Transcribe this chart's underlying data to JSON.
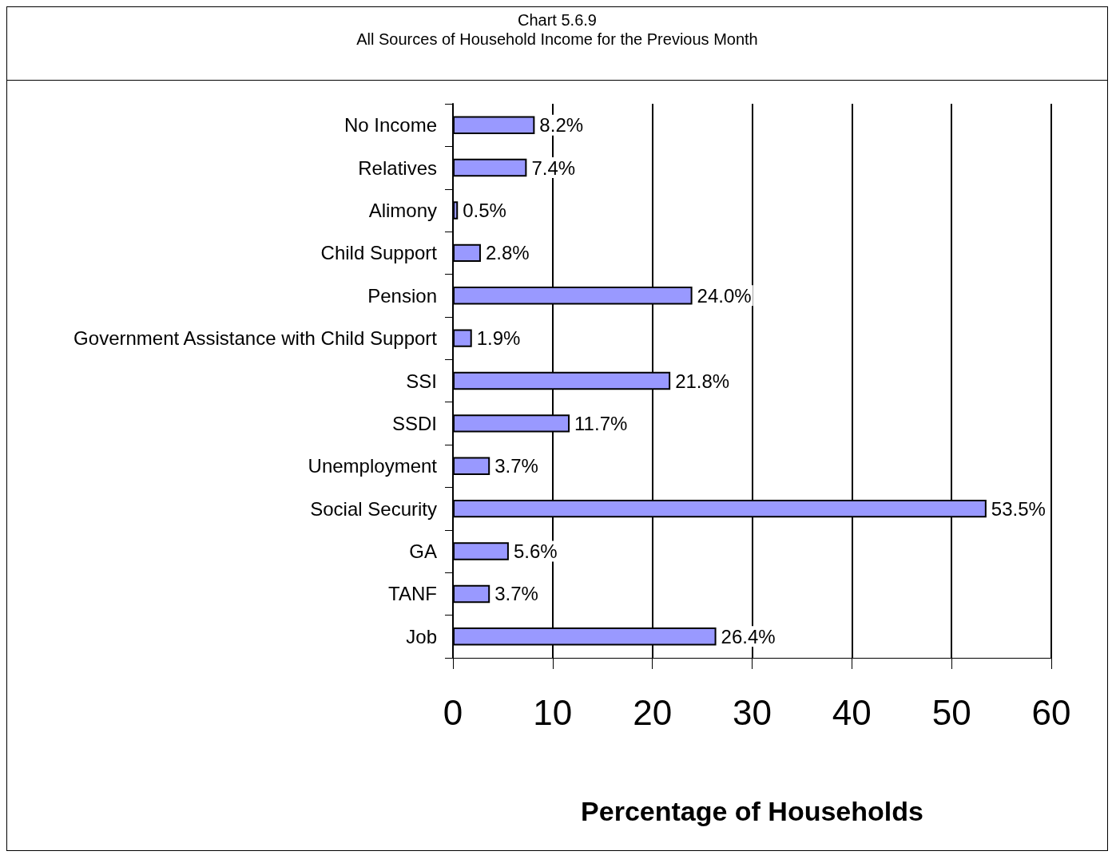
{
  "chart_data": {
    "type": "bar",
    "orientation": "horizontal",
    "title": "Chart 5.6.9",
    "subtitle": "All Sources of Household Income for the Previous Month",
    "xlabel": "Percentage of Households",
    "categories": [
      "No Income",
      "Relatives",
      "Alimony",
      "Child Support",
      "Pension",
      "Government Assistance with Child Support",
      "SSI",
      "SSDI",
      "Unemployment",
      "Social Security",
      "GA",
      "TANF",
      "Job"
    ],
    "values": [
      8.2,
      7.4,
      0.5,
      2.8,
      24.0,
      1.9,
      21.8,
      11.7,
      3.7,
      53.5,
      5.6,
      3.7,
      26.4
    ],
    "value_labels": [
      "8.2%",
      "7.4%",
      "0.5%",
      "2.8%",
      "24.0%",
      "1.9%",
      "21.8%",
      "11.7%",
      "3.7%",
      "53.5%",
      "5.6%",
      "3.7%",
      "26.4%"
    ],
    "color": "#9999ff",
    "xlim": [
      0,
      60
    ],
    "xticks": [
      0,
      10,
      20,
      30,
      40,
      50,
      60
    ],
    "grid": "x"
  }
}
